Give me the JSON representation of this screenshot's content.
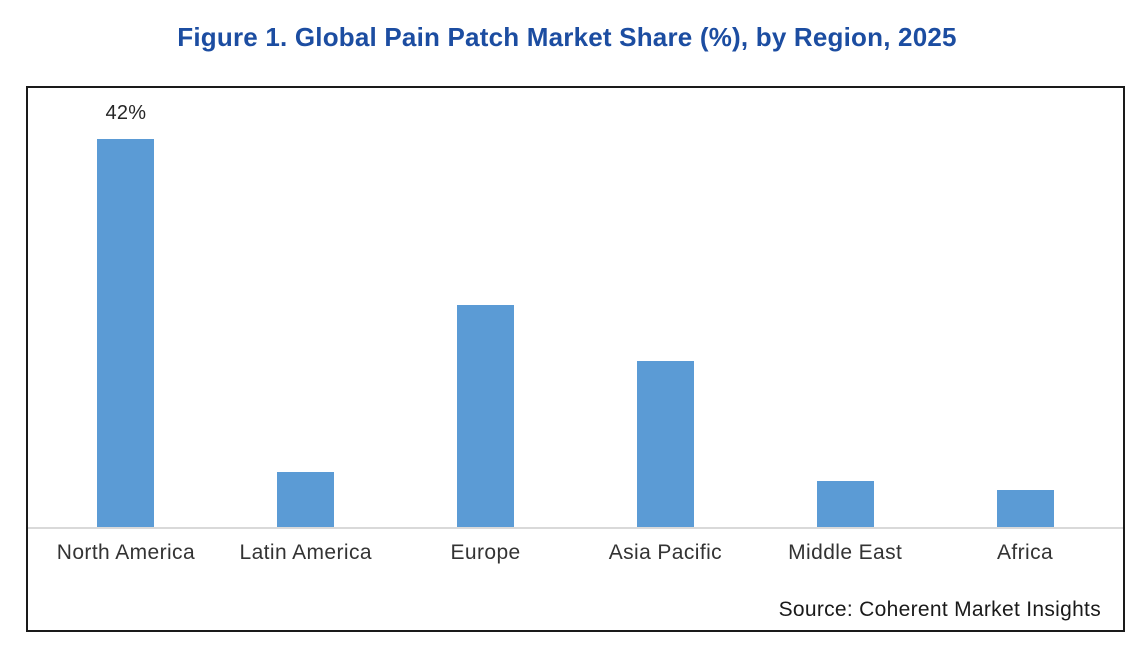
{
  "figure": {
    "title": "Figure 1. Global Pain Patch Market Share (%), by Region, 2025",
    "source": "Source: Coherent Market Insights"
  },
  "colors": {
    "bar": "#5B9BD5",
    "title_text": "#1C4DA1",
    "axis_line": "#D9D9D9",
    "frame_border": "#1A1A1A",
    "label_text": "#333333",
    "data_label_text": "#262626"
  },
  "chart_data": {
    "type": "bar",
    "title": "Figure 1. Global Pain Patch Market Share (%), by Region, 2025",
    "categories": [
      "North America",
      "Latin America",
      "Europe",
      "Asia Pacific",
      "Middle East",
      "Africa"
    ],
    "values": [
      42,
      6,
      24,
      18,
      5,
      4
    ],
    "unit": "%",
    "data_labels": [
      "42%",
      "",
      "",
      "",
      "",
      ""
    ],
    "xlabel": "",
    "ylabel": "",
    "ylim": [
      0,
      45
    ],
    "grid": false,
    "legend": false,
    "bar_color": "#5B9BD5",
    "annotations": [
      "Source: Coherent Market Insights"
    ]
  }
}
